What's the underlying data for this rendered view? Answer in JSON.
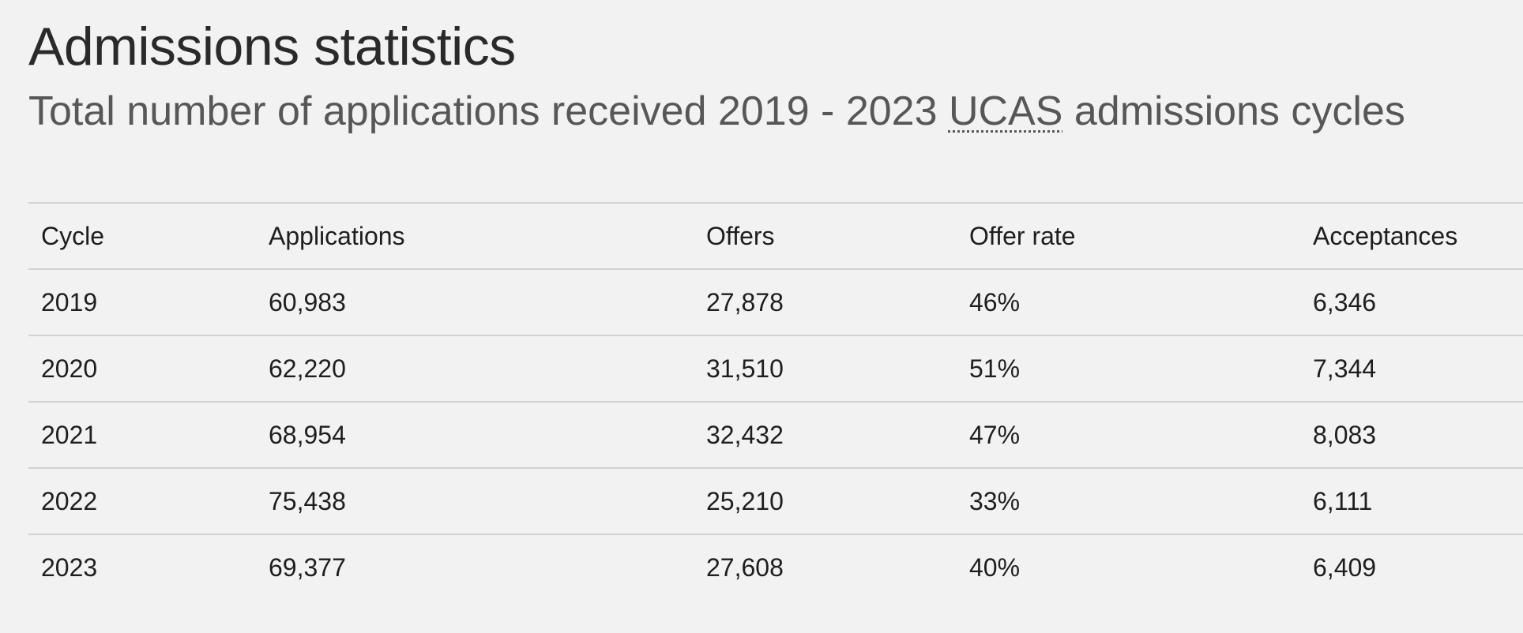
{
  "page": {
    "title": "Admissions statistics",
    "subtitle_before": "Total number of applications received 2019 - 2023 ",
    "subtitle_abbr": "UCAS",
    "subtitle_after": " admissions cycles"
  },
  "table": {
    "headers": {
      "cycle": "Cycle",
      "applications": "Applications",
      "offers": "Offers",
      "offer_rate": "Offer rate",
      "acceptances": "Acceptances"
    },
    "rows": [
      {
        "cycle": "2019",
        "applications": "60,983",
        "offers": "27,878",
        "offer_rate": "46%",
        "acceptances": "6,346"
      },
      {
        "cycle": "2020",
        "applications": "62,220",
        "offers": "31,510",
        "offer_rate": "51%",
        "acceptances": "7,344"
      },
      {
        "cycle": "2021",
        "applications": "68,954",
        "offers": "32,432",
        "offer_rate": "47%",
        "acceptances": "8,083"
      },
      {
        "cycle": "2022",
        "applications": "75,438",
        "offers": "25,210",
        "offer_rate": "33%",
        "acceptances": "6,111"
      },
      {
        "cycle": "2023",
        "applications": "69,377",
        "offers": "27,608",
        "offer_rate": "40%",
        "acceptances": "6,409"
      }
    ]
  },
  "colors": {
    "background": "#f2f2f2",
    "title": "#2a2a2a",
    "subtitle": "#575757",
    "rule": "#d2d2d2"
  }
}
